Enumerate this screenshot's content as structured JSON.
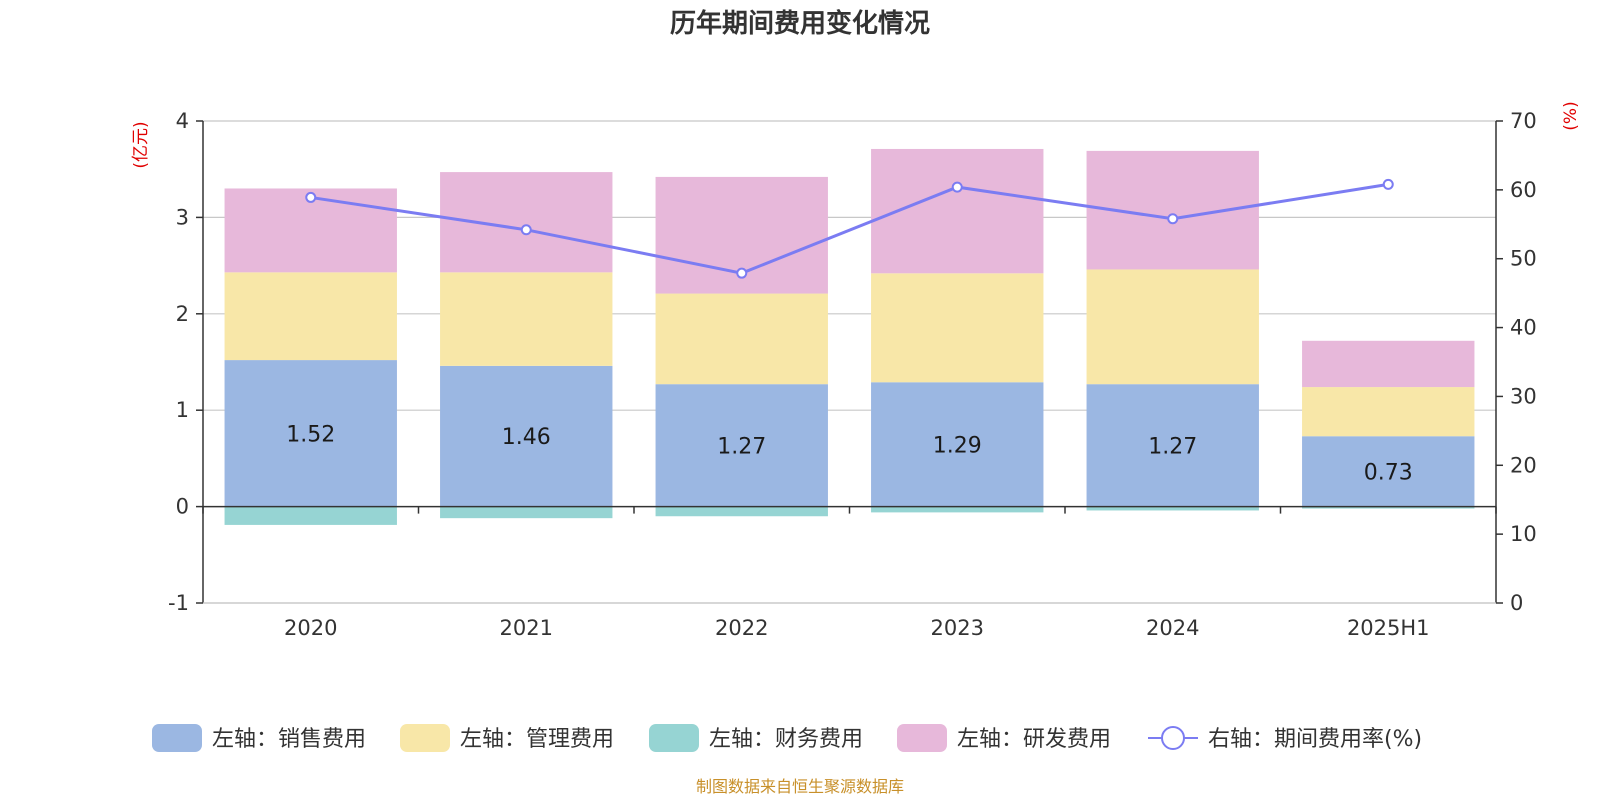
{
  "colors": {
    "sales": "#9bb7e2",
    "admin": "#f8e7a8",
    "finance": "#96d4d3",
    "rd": "#e7b8da",
    "rate": "#7b7cf2",
    "unit": "#e00000",
    "source": "#c8902a"
  },
  "footer": {
    "source": "制图数据来自恒生聚源数据库"
  },
  "chart_data": {
    "type": "bar",
    "title": "历年期间费用变化情况",
    "categories": [
      "2020",
      "2021",
      "2022",
      "2023",
      "2024",
      "2025H1"
    ],
    "stacked": true,
    "left_axis": {
      "unit_label": "(亿元)",
      "ylim": [
        -1,
        4
      ],
      "ticks": [
        -1,
        0,
        1,
        2,
        3,
        4
      ]
    },
    "right_axis": {
      "unit_label": "(%)",
      "ylim": [
        0,
        70
      ],
      "ticks": [
        0,
        10,
        20,
        30,
        40,
        50,
        60,
        70
      ]
    },
    "series": [
      {
        "name": "左轴：销售费用",
        "key": "sales",
        "axis": "left",
        "type": "bar",
        "values": [
          1.52,
          1.46,
          1.27,
          1.29,
          1.27,
          0.73
        ],
        "show_labels": true
      },
      {
        "name": "左轴：管理费用",
        "key": "admin",
        "axis": "left",
        "type": "bar",
        "values": [
          0.91,
          0.97,
          0.94,
          1.13,
          1.19,
          0.51
        ]
      },
      {
        "name": "左轴：财务费用",
        "key": "finance",
        "axis": "left",
        "type": "bar",
        "values": [
          -0.19,
          -0.12,
          -0.1,
          -0.06,
          -0.04,
          -0.02
        ]
      },
      {
        "name": "左轴：研发费用",
        "key": "rd",
        "axis": "left",
        "type": "bar",
        "values": [
          0.87,
          1.04,
          1.21,
          1.29,
          1.23,
          0.48
        ]
      },
      {
        "name": "右轴：期间费用率(%)",
        "key": "rate",
        "axis": "right",
        "type": "line",
        "values": [
          58.9,
          54.2,
          47.9,
          60.4,
          55.8,
          60.8
        ]
      }
    ],
    "legend_position": "bottom",
    "grid": true
  }
}
